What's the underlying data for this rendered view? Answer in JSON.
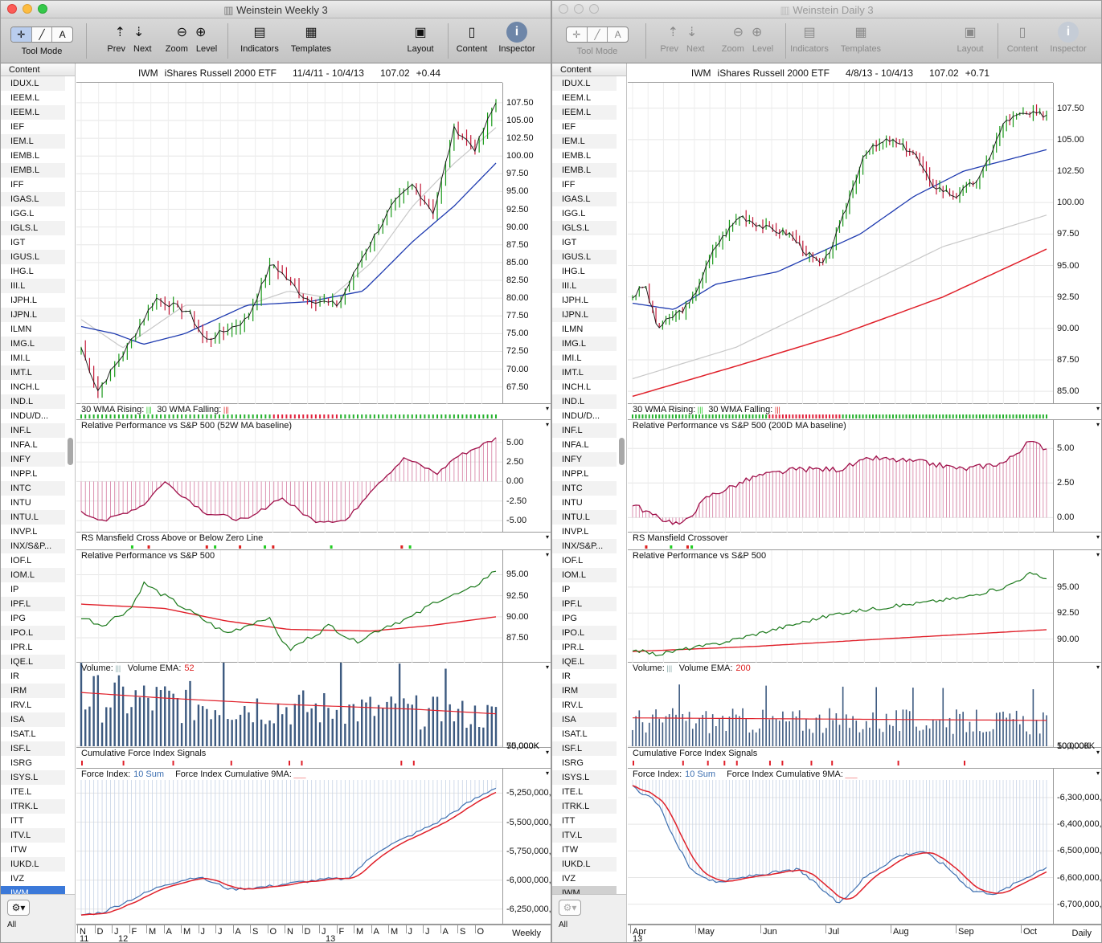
{
  "left": {
    "title": "Weinstein Weekly 3",
    "toolbar": {
      "tool_mode": "Tool Mode",
      "prev": "Prev",
      "next": "Next",
      "zoom": "Zoom",
      "level": "Level",
      "indicators": "Indicators",
      "templates": "Templates",
      "layout": "Layout",
      "content": "Content",
      "inspector": "Inspector"
    },
    "header": {
      "symbol": "IWM",
      "name": "iShares Russell 2000 ETF",
      "range": "11/4/11 - 10/4/13",
      "price": "107.02",
      "change": "+0.44"
    },
    "panels": {
      "wma_rising": "30 WMA Rising:",
      "wma_falling": "30 WMA Falling:",
      "relperf_ma": "Relative Performance vs S&P 500 (52W MA baseline)",
      "rs_cross": "RS Mansfield Cross Above or Below Zero Line",
      "relperf": "Relative Performance vs S&P 500",
      "volume": "Volume:",
      "volume_ema": "Volume EMA:",
      "volume_ema_period": "52",
      "cfi": "Cumulative Force Index Signals",
      "force": "Force Index:",
      "force_sum": "10 Sum",
      "force_cum": "Force Index Cumulative 9MA:"
    },
    "axes": {
      "price": [
        "107.50",
        "105.00",
        "102.50",
        "100.00",
        "97.50",
        "95.00",
        "92.50",
        "90.00",
        "87.50",
        "85.00",
        "82.50",
        "80.00",
        "77.50",
        "75.00",
        "72.50",
        "70.00",
        "67.50"
      ],
      "relperf_ma": [
        "5.00",
        "2.50",
        "0.00",
        "-2.50",
        "-5.00"
      ],
      "relperf": [
        "95.00",
        "92.50",
        "90.00",
        "87.50"
      ],
      "volume": [
        "75,000K",
        "50,000K"
      ],
      "force": [
        "-5,250,000,",
        "-5,500,000,",
        "-5,750,000,",
        "-6,000,000,",
        "-6,250,000,"
      ]
    },
    "dates": {
      "months": [
        "N",
        "D",
        "J",
        "F",
        "M",
        "A",
        "M",
        "J",
        "J",
        "A",
        "S",
        "O",
        "N",
        "D",
        "J",
        "F",
        "M",
        "A",
        "M",
        "J",
        "J",
        "A",
        "S",
        "O"
      ],
      "years": [
        "11",
        "12",
        "13"
      ],
      "period": "Weekly"
    }
  },
  "right": {
    "title": "Weinstein Daily 3",
    "header": {
      "symbol": "IWM",
      "name": "iShares Russell 2000 ETF",
      "range": "4/8/13 - 10/4/13",
      "price": "107.02",
      "change": "+0.71"
    },
    "panels": {
      "wma_rising": "30 WMA Rising:",
      "wma_falling": "30 WMA Falling:",
      "relperf_ma": "Relative Performance vs S&P 500 (200D MA baseline)",
      "rs_cross": "RS Mansfield Crossover",
      "relperf": "Relative Performance vs S&P 500",
      "volume": "Volume:",
      "volume_ema": "Volume EMA:",
      "volume_ema_period": "200",
      "cfi": "Cumulative Force Index Signals",
      "force": "Force Index:",
      "force_sum": "10 Sum",
      "force_cum": "Force Index Cumulative 9MA:"
    },
    "axes": {
      "price": [
        "107.50",
        "105.00",
        "102.50",
        "100.00",
        "97.50",
        "95.00",
        "92.50",
        "90.00",
        "87.50",
        "85.00"
      ],
      "relperf_ma": [
        "5.00",
        "2.50",
        "0.00"
      ],
      "relperf": [
        "95.00",
        "92.50",
        "90.00"
      ],
      "volume": [
        "100,000K",
        "50,000K"
      ],
      "force": [
        "-6,300,000,",
        "-6,400,000,",
        "-6,500,000,",
        "-6,600,000,",
        "-6,700,000,"
      ]
    },
    "dates": {
      "months": [
        "Apr",
        "May",
        "Jun",
        "Jul",
        "Aug",
        "Sep",
        "Oct"
      ],
      "years": [
        "13"
      ],
      "period": "Daily"
    }
  },
  "sidebar": {
    "header": "Content",
    "items": [
      "IDUX.L",
      "IEEM.L",
      "IEEM.L",
      "IEF",
      "IEM.L",
      "IEMB.L",
      "IEMB.L",
      "IFF",
      "IGAS.L",
      "IGG.L",
      "IGLS.L",
      "IGT",
      "IGUS.L",
      "IHG.L",
      "III.L",
      "IJPH.L",
      "IJPN.L",
      "ILMN",
      "IMG.L",
      "IMI.L",
      "IMT.L",
      "INCH.L",
      "IND.L",
      "INDU/D...",
      "INF.L",
      "INFA.L",
      "INFY",
      "INPP.L",
      "INTC",
      "INTU",
      "INTU.L",
      "INVP.L",
      "INX/S&P...",
      "IOF.L",
      "IOM.L",
      "IP",
      "IPF.L",
      "IPG",
      "IPO.L",
      "IPR.L",
      "IQE.L",
      "IR",
      "IRM",
      "IRV.L",
      "ISA",
      "ISAT.L",
      "ISF.L",
      "ISRG",
      "ISYS.L",
      "ITE.L",
      "ITRK.L",
      "ITT",
      "ITV.L",
      "ITW",
      "IUKD.L",
      "IVZ",
      "IWM"
    ],
    "selected": "IWM",
    "footer": "All"
  },
  "colors": {
    "price_up": "#1a9a1a",
    "price_down": "#c41b3a",
    "ma_blue": "#1f3bb0",
    "ma_gray": "#c8c8c8",
    "ma_red": "#e0202a",
    "rs_crimson": "#a0104a",
    "vol_bar": "#3d5a80",
    "force_blue": "#3d6fb0",
    "selection": "#3b79d9"
  }
}
